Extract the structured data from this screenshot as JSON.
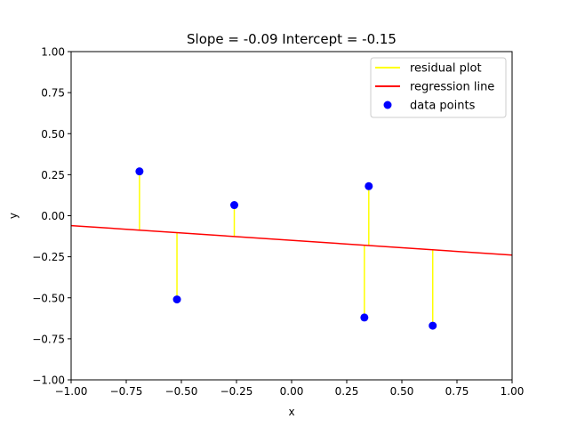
{
  "chart_data": {
    "type": "scatter",
    "title": "Slope = -0.09 Intercept = -0.15",
    "xlabel": "x",
    "ylabel": "y",
    "xlim": [
      -1.0,
      1.0
    ],
    "ylim": [
      -1.0,
      1.0
    ],
    "xticks": [
      -1.0,
      -0.75,
      -0.5,
      -0.25,
      0.0,
      0.25,
      0.5,
      0.75,
      1.0
    ],
    "xtick_labels": [
      "−1.00",
      "−0.75",
      "−0.50",
      "−0.25",
      "0.00",
      "0.25",
      "0.50",
      "0.75",
      "1.00"
    ],
    "yticks": [
      -1.0,
      -0.75,
      -0.5,
      -0.25,
      0.0,
      0.25,
      0.5,
      0.75,
      1.0
    ],
    "ytick_labels": [
      "−1.00",
      "−0.75",
      "−0.50",
      "−0.25",
      "0.00",
      "0.25",
      "0.50",
      "0.75",
      "1.00"
    ],
    "grid": false,
    "legend_position": "top-right",
    "regression": {
      "slope": -0.09,
      "intercept": -0.15
    },
    "points": [
      {
        "x": -0.69,
        "y": 0.27
      },
      {
        "x": -0.52,
        "y": -0.51
      },
      {
        "x": -0.26,
        "y": 0.065
      },
      {
        "x": 0.33,
        "y": -0.62
      },
      {
        "x": 0.35,
        "y": 0.18
      },
      {
        "x": 0.64,
        "y": -0.67
      }
    ],
    "legend": [
      {
        "label": "residual plot",
        "kind": "line",
        "color": "#ffff00"
      },
      {
        "label": "regression line",
        "kind": "line",
        "color": "#ff0000"
      },
      {
        "label": "data points",
        "kind": "marker",
        "color": "#0000ff"
      }
    ],
    "colors": {
      "points": "#0000ff",
      "regression": "#ff0000",
      "residual": "#ffff00"
    }
  }
}
